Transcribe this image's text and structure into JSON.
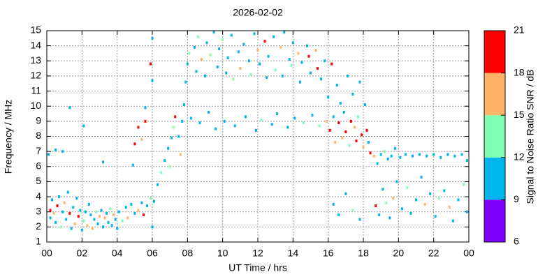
{
  "chart_data": {
    "type": "scatter",
    "title": "2026-02-02",
    "x_label": "UT Time / hrs",
    "y_label": "Frequency / MHz",
    "colorbar_label": "Signal to Noise Ratio SNR / dB",
    "xlim": [
      0,
      24
    ],
    "xticks": [
      {
        "value": 0,
        "label": "00"
      },
      {
        "value": 2,
        "label": "02"
      },
      {
        "value": 4,
        "label": "04"
      },
      {
        "value": 6,
        "label": "06"
      },
      {
        "value": 8,
        "label": "08"
      },
      10,
      12,
      14,
      16,
      18,
      20,
      22,
      {
        "value": 24,
        "label": "00"
      }
    ],
    "ylim": [
      1,
      15
    ],
    "yticks": [
      1,
      2,
      3,
      4,
      5,
      6,
      7,
      8,
      9,
      10,
      11,
      12,
      13,
      14,
      15
    ],
    "grid": true,
    "clim": [
      6,
      21
    ],
    "cticks": [
      6,
      9,
      12,
      15,
      18,
      21
    ],
    "colors": [
      "#8000ff",
      "#00b4ec",
      "#80ffb4",
      "#ffb366",
      "#ff0000"
    ],
    "points": [
      [
        0.2,
        3.1,
        19
      ],
      [
        0.2,
        2.6,
        10
      ],
      [
        0.3,
        3.8,
        10
      ],
      [
        0.4,
        2.9,
        16
      ],
      [
        0.5,
        2.3,
        10
      ],
      [
        0.6,
        3.4,
        19
      ],
      [
        0.7,
        4.0,
        10
      ],
      [
        0.8,
        2.0,
        14
      ],
      [
        0.9,
        3.0,
        10
      ],
      [
        1.0,
        3.6,
        17
      ],
      [
        1.1,
        2.5,
        10
      ],
      [
        1.2,
        4.3,
        10
      ],
      [
        1.3,
        2.9,
        19
      ],
      [
        1.4,
        1.9,
        10
      ],
      [
        1.5,
        3.3,
        10
      ],
      [
        1.6,
        2.2,
        16
      ],
      [
        1.7,
        3.9,
        10
      ],
      [
        1.8,
        2.7,
        19
      ],
      [
        1.9,
        3.1,
        10
      ],
      [
        2.0,
        1.8,
        10
      ],
      [
        2.1,
        2.4,
        14
      ],
      [
        2.2,
        3.0,
        10
      ],
      [
        2.3,
        2.1,
        17
      ],
      [
        2.4,
        3.5,
        10
      ],
      [
        2.5,
        2.8,
        10
      ],
      [
        2.6,
        1.9,
        16
      ],
      [
        2.7,
        2.5,
        10
      ],
      [
        2.8,
        3.0,
        13
      ],
      [
        2.9,
        2.2,
        10
      ],
      [
        3.0,
        2.7,
        17
      ],
      [
        3.1,
        3.1,
        10
      ],
      [
        3.2,
        2.0,
        10
      ],
      [
        3.3,
        2.6,
        15
      ],
      [
        3.4,
        2.9,
        10
      ],
      [
        3.5,
        2.3,
        10
      ],
      [
        3.6,
        3.2,
        14
      ],
      [
        3.7,
        2.1,
        10
      ],
      [
        3.8,
        2.8,
        16
      ],
      [
        3.9,
        2.5,
        10
      ],
      [
        4.0,
        1.9,
        10
      ],
      [
        4.1,
        3.0,
        10
      ],
      [
        4.3,
        2.4,
        14
      ],
      [
        4.5,
        3.3,
        10
      ],
      [
        4.6,
        2.6,
        17
      ],
      [
        4.8,
        3.5,
        10
      ],
      [
        5.0,
        2.9,
        10
      ],
      [
        5.2,
        3.1,
        16
      ],
      [
        5.4,
        3.6,
        10
      ],
      [
        5.5,
        2.8,
        19
      ],
      [
        5.7,
        3.4,
        10
      ],
      [
        5.9,
        3.9,
        14
      ],
      [
        6.0,
        2.0,
        10
      ],
      [
        6.1,
        3.7,
        10
      ],
      [
        0.1,
        6.8,
        10
      ],
      [
        0.5,
        7.1,
        10
      ],
      [
        0.9,
        7.0,
        10
      ],
      [
        1.3,
        9.9,
        10
      ],
      [
        2.1,
        8.7,
        10
      ],
      [
        3.2,
        6.3,
        10
      ],
      [
        4.9,
        6.1,
        10
      ],
      [
        5.0,
        7.5,
        19
      ],
      [
        5.2,
        8.6,
        19
      ],
      [
        5.4,
        7.8,
        17
      ],
      [
        5.6,
        9.0,
        19
      ],
      [
        5.6,
        9.9,
        10
      ],
      [
        5.9,
        12.8,
        19
      ],
      [
        6.0,
        14.5,
        10
      ],
      [
        6.0,
        11.7,
        10
      ],
      [
        6.3,
        4.8,
        10
      ],
      [
        6.5,
        5.6,
        14
      ],
      [
        6.7,
        6.4,
        10
      ],
      [
        6.9,
        7.2,
        10
      ],
      [
        7.0,
        6.0,
        14
      ],
      [
        7.1,
        7.9,
        10
      ],
      [
        7.2,
        8.6,
        13
      ],
      [
        7.3,
        9.3,
        19
      ],
      [
        7.5,
        8.0,
        10
      ],
      [
        7.6,
        6.8,
        16
      ],
      [
        7.7,
        9.0,
        10
      ],
      [
        7.8,
        10.1,
        10
      ],
      [
        7.9,
        11.6,
        10
      ],
      [
        8.0,
        12.8,
        10
      ],
      [
        8.1,
        13.5,
        14
      ],
      [
        8.2,
        9.2,
        10
      ],
      [
        8.4,
        13.9,
        10
      ],
      [
        8.5,
        12.3,
        10
      ],
      [
        8.6,
        14.6,
        13
      ],
      [
        8.7,
        8.9,
        10
      ],
      [
        8.8,
        13.1,
        16
      ],
      [
        9.0,
        12.0,
        10
      ],
      [
        9.1,
        14.2,
        10
      ],
      [
        9.2,
        9.6,
        10
      ],
      [
        9.3,
        13.4,
        13
      ],
      [
        9.5,
        14.9,
        10
      ],
      [
        9.6,
        8.5,
        10
      ],
      [
        9.7,
        12.6,
        10
      ],
      [
        9.8,
        13.8,
        10
      ],
      [
        10.0,
        14.4,
        13
      ],
      [
        10.1,
        9.0,
        10
      ],
      [
        10.2,
        12.2,
        10
      ],
      [
        10.3,
        13.2,
        10
      ],
      [
        10.5,
        14.7,
        10
      ],
      [
        10.6,
        11.8,
        13
      ],
      [
        10.7,
        8.7,
        10
      ],
      [
        10.9,
        13.6,
        10
      ],
      [
        11.0,
        12.5,
        16
      ],
      [
        11.2,
        14.1,
        10
      ],
      [
        11.3,
        9.3,
        10
      ],
      [
        11.5,
        13.0,
        10
      ],
      [
        11.6,
        12.1,
        13
      ],
      [
        11.8,
        14.8,
        10
      ],
      [
        11.9,
        8.4,
        10
      ],
      [
        12.0,
        13.7,
        16
      ],
      [
        12.1,
        12.8,
        10
      ],
      [
        12.2,
        9.1,
        13
      ],
      [
        12.4,
        14.3,
        19
      ],
      [
        12.5,
        11.9,
        10
      ],
      [
        12.6,
        13.3,
        10
      ],
      [
        12.8,
        8.8,
        10
      ],
      [
        12.9,
        14.6,
        10
      ],
      [
        13.0,
        12.4,
        13
      ],
      [
        13.1,
        9.5,
        10
      ],
      [
        13.3,
        13.9,
        16
      ],
      [
        13.4,
        12.0,
        10
      ],
      [
        13.5,
        14.9,
        10
      ],
      [
        13.7,
        8.6,
        10
      ],
      [
        13.8,
        13.1,
        10
      ],
      [
        13.9,
        12.7,
        13
      ],
      [
        14.0,
        14.2,
        10
      ],
      [
        14.1,
        9.2,
        10
      ],
      [
        14.3,
        13.5,
        17
      ],
      [
        14.4,
        11.6,
        10
      ],
      [
        14.5,
        12.9,
        10
      ],
      [
        14.6,
        8.9,
        13
      ],
      [
        14.8,
        14.0,
        10
      ],
      [
        14.9,
        13.3,
        19
      ],
      [
        15.0,
        12.2,
        10
      ],
      [
        15.1,
        9.4,
        10
      ],
      [
        15.3,
        13.7,
        16
      ],
      [
        15.4,
        12.5,
        19
      ],
      [
        15.5,
        8.7,
        13
      ],
      [
        15.6,
        11.8,
        10
      ],
      [
        15.8,
        13.0,
        10
      ],
      [
        15.9,
        9.0,
        16
      ],
      [
        16.0,
        10.6,
        10
      ],
      [
        16.1,
        8.4,
        19
      ],
      [
        16.2,
        12.8,
        19
      ],
      [
        16.3,
        9.3,
        10
      ],
      [
        16.4,
        7.6,
        16
      ],
      [
        16.5,
        11.4,
        10
      ],
      [
        16.6,
        8.9,
        19
      ],
      [
        16.7,
        10.2,
        10
      ],
      [
        16.8,
        7.9,
        17
      ],
      [
        16.9,
        9.6,
        10
      ],
      [
        17.0,
        8.3,
        19
      ],
      [
        17.1,
        12.0,
        10
      ],
      [
        17.2,
        7.4,
        13
      ],
      [
        17.3,
        9.0,
        19
      ],
      [
        17.4,
        10.8,
        10
      ],
      [
        17.5,
        8.6,
        17
      ],
      [
        17.6,
        7.7,
        19
      ],
      [
        17.7,
        9.3,
        13
      ],
      [
        17.8,
        11.6,
        10
      ],
      [
        17.9,
        8.1,
        19
      ],
      [
        18.0,
        7.3,
        16
      ],
      [
        18.1,
        10.1,
        10
      ],
      [
        18.2,
        8.4,
        19
      ],
      [
        18.3,
        7.6,
        10
      ],
      [
        18.4,
        6.9,
        19
      ],
      [
        16.3,
        3.5,
        10
      ],
      [
        16.6,
        2.8,
        10
      ],
      [
        17.0,
        4.2,
        10
      ],
      [
        17.4,
        3.1,
        13
      ],
      [
        17.8,
        2.5,
        10
      ],
      [
        18.6,
        6.7,
        16
      ],
      [
        18.8,
        6.2,
        10
      ],
      [
        19.0,
        6.8,
        10
      ],
      [
        19.2,
        7.0,
        13
      ],
      [
        19.4,
        6.5,
        10
      ],
      [
        19.6,
        6.7,
        10
      ],
      [
        19.8,
        7.2,
        10
      ],
      [
        20.1,
        6.6,
        10
      ],
      [
        20.4,
        6.8,
        10
      ],
      [
        20.8,
        6.7,
        10
      ],
      [
        21.2,
        6.8,
        10
      ],
      [
        21.6,
        6.7,
        10
      ],
      [
        22.0,
        6.8,
        10
      ],
      [
        22.4,
        6.6,
        10
      ],
      [
        22.8,
        6.8,
        10
      ],
      [
        23.2,
        6.7,
        10
      ],
      [
        23.6,
        6.8,
        10
      ],
      [
        23.9,
        6.4,
        10
      ],
      [
        18.7,
        3.4,
        19
      ],
      [
        18.9,
        2.8,
        10
      ],
      [
        19.1,
        4.5,
        10
      ],
      [
        19.3,
        3.6,
        13
      ],
      [
        19.5,
        2.6,
        10
      ],
      [
        19.7,
        3.9,
        17
      ],
      [
        19.9,
        5.0,
        10
      ],
      [
        20.2,
        3.2,
        10
      ],
      [
        20.5,
        4.6,
        13
      ],
      [
        20.7,
        2.9,
        10
      ],
      [
        21.0,
        3.8,
        10
      ],
      [
        21.3,
        5.3,
        10
      ],
      [
        21.5,
        3.5,
        16
      ],
      [
        21.8,
        4.2,
        10
      ],
      [
        22.1,
        2.7,
        10
      ],
      [
        22.3,
        3.9,
        13
      ],
      [
        22.6,
        4.4,
        10
      ],
      [
        22.9,
        3.3,
        17
      ],
      [
        23.1,
        2.4,
        10
      ],
      [
        23.4,
        3.8,
        10
      ],
      [
        23.7,
        4.8,
        13
      ],
      [
        23.9,
        3.0,
        10
      ]
    ]
  }
}
